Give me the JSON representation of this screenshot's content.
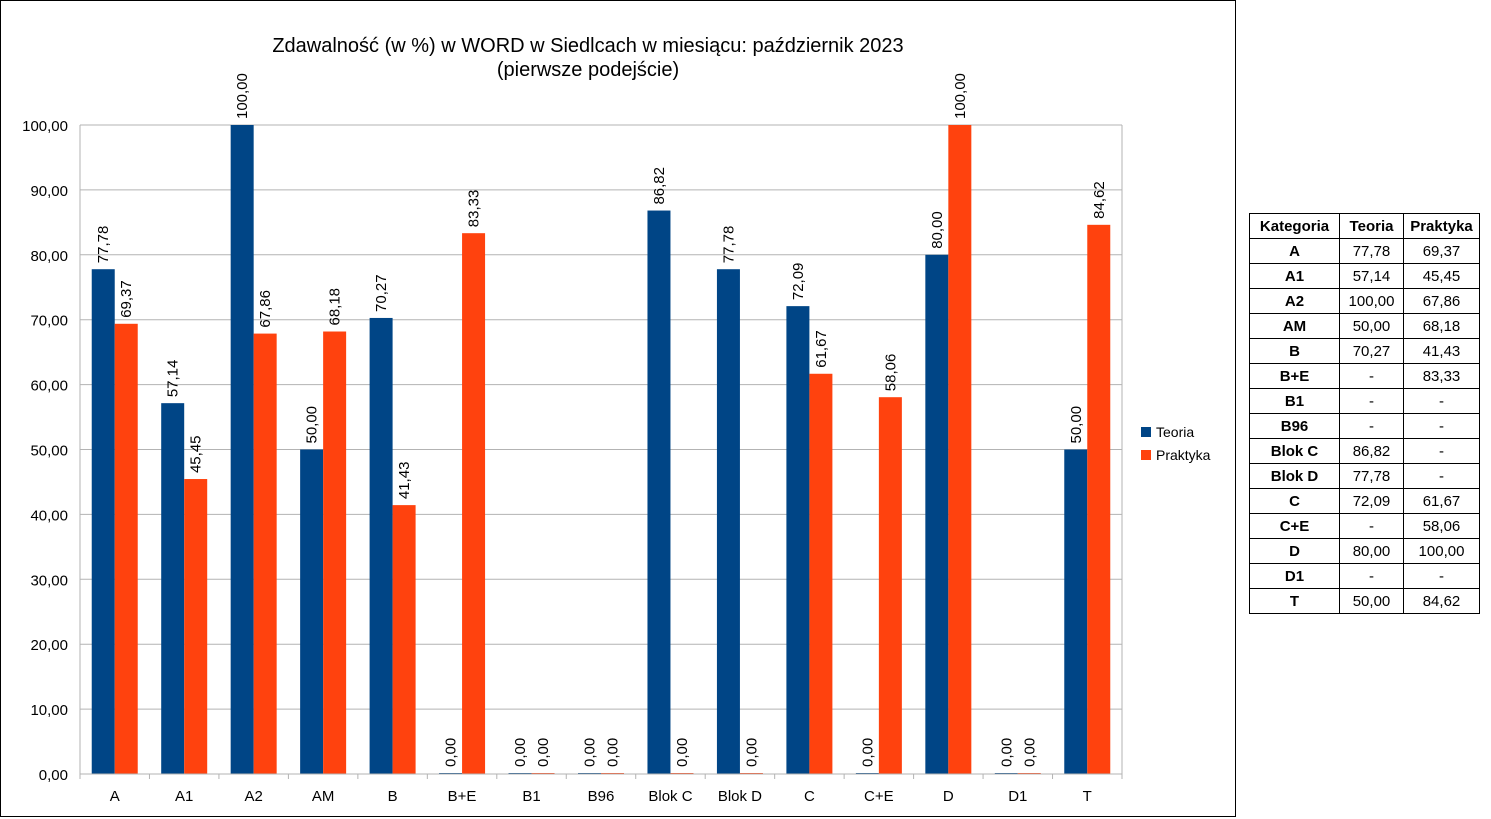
{
  "chart_data": {
    "type": "bar",
    "title": "Zdawalność (w %) w WORD w Siedlcach w miesiącu: październik 2023",
    "subtitle": "(pierwsze podejście)",
    "categories": [
      "A",
      "A1",
      "A2",
      "AM",
      "B",
      "B+E",
      "B1",
      "B96",
      "Blok C",
      "Blok D",
      "C",
      "C+E",
      "D",
      "D1",
      "T"
    ],
    "series": [
      {
        "name": "Teoria",
        "color": "#004586",
        "values": [
          77.78,
          57.14,
          100.0,
          50.0,
          70.27,
          0.0,
          0.0,
          0.0,
          86.82,
          77.78,
          72.09,
          0.0,
          80.0,
          0.0,
          50.0
        ],
        "labels": [
          "77,78",
          "57,14",
          "100,00",
          "50,00",
          "70,27",
          "0,00",
          "0,00",
          "0,00",
          "86,82",
          "77,78",
          "72,09",
          "0,00",
          "80,00",
          "0,00",
          "50,00"
        ]
      },
      {
        "name": "Praktyka",
        "color": "#ff420e",
        "values": [
          69.37,
          45.45,
          67.86,
          68.18,
          41.43,
          83.33,
          0.0,
          0.0,
          0.0,
          0.0,
          61.67,
          58.06,
          100.0,
          0.0,
          84.62
        ],
        "labels": [
          "69,37",
          "45,45",
          "67,86",
          "68,18",
          "41,43",
          "83,33",
          "0,00",
          "0,00",
          "0,00",
          "0,00",
          "61,67",
          "58,06",
          "100,00",
          "0,00",
          "84,62"
        ]
      }
    ],
    "ylim": [
      0,
      100
    ],
    "yticks": [
      "0,00",
      "10,00",
      "20,00",
      "30,00",
      "40,00",
      "50,00",
      "60,00",
      "70,00",
      "80,00",
      "90,00",
      "100,00"
    ],
    "grid": true,
    "legend_position": "right"
  },
  "table": {
    "headers": [
      "Kategoria",
      "Teoria",
      "Praktyka"
    ],
    "rows": [
      [
        "A",
        "77,78",
        "69,37"
      ],
      [
        "A1",
        "57,14",
        "45,45"
      ],
      [
        "A2",
        "100,00",
        "67,86"
      ],
      [
        "AM",
        "50,00",
        "68,18"
      ],
      [
        "B",
        "70,27",
        "41,43"
      ],
      [
        "B+E",
        "-",
        "83,33"
      ],
      [
        "B1",
        "-",
        "-"
      ],
      [
        "B96",
        "-",
        "-"
      ],
      [
        "Blok C",
        "86,82",
        "-"
      ],
      [
        "Blok D",
        "77,78",
        "-"
      ],
      [
        "C",
        "72,09",
        "61,67"
      ],
      [
        "C+E",
        "-",
        "58,06"
      ],
      [
        "D",
        "80,00",
        "100,00"
      ],
      [
        "D1",
        "-",
        "-"
      ],
      [
        "T",
        "50,00",
        "84,62"
      ]
    ]
  }
}
